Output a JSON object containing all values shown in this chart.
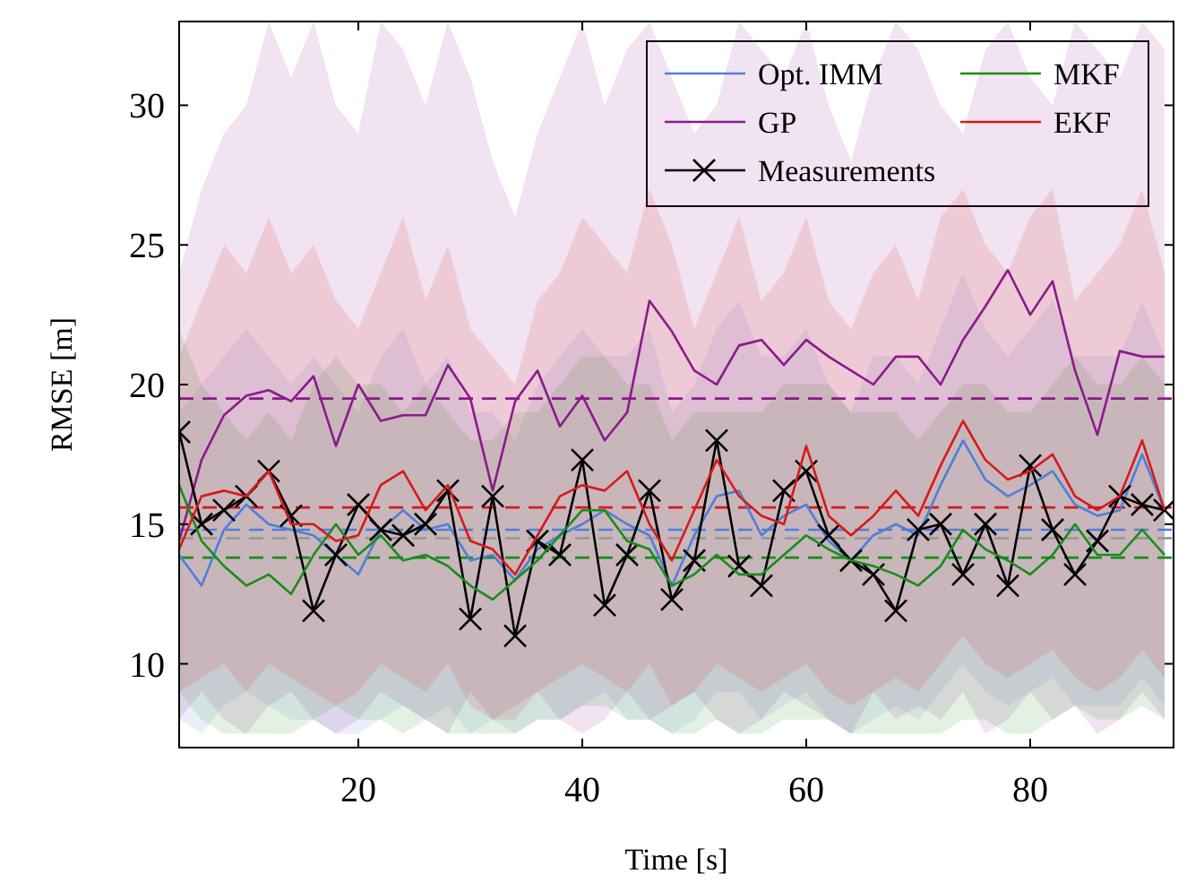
{
  "chart_data": {
    "type": "line",
    "xlabel": "Time [s]",
    "ylabel": "RMSE [m]",
    "xlim": [
      4,
      92.8
    ],
    "ylim": [
      7,
      33
    ],
    "xticks": [
      20,
      40,
      60,
      80
    ],
    "yticks": [
      10,
      15,
      20,
      25,
      30
    ],
    "grid": false,
    "legend": "top right",
    "x": [
      4,
      6,
      8,
      10,
      12,
      14,
      16,
      18,
      20,
      22,
      24,
      26,
      28,
      30,
      32,
      34,
      36,
      38,
      40,
      42,
      44,
      46,
      48,
      50,
      52,
      54,
      56,
      58,
      60,
      62,
      64,
      66,
      68,
      70,
      72,
      74,
      76,
      78,
      80,
      82,
      84,
      86,
      88,
      90,
      92
    ],
    "series": [
      {
        "name": "Opt. IMM",
        "color": "#4f7fd8",
        "values": [
          13.9,
          12.8,
          14.8,
          15.7,
          15.0,
          14.8,
          14.6,
          13.9,
          13.2,
          14.8,
          15.5,
          14.8,
          15.0,
          13.7,
          13.9,
          13.0,
          14.1,
          14.6,
          15.0,
          15.5,
          15.0,
          14.6,
          12.8,
          14.6,
          16.0,
          16.2,
          14.6,
          15.3,
          15.7,
          14.4,
          13.7,
          14.6,
          15.0,
          14.6,
          16.4,
          18.0,
          16.6,
          16.0,
          16.4,
          16.9,
          15.7,
          15.3,
          15.5,
          17.5,
          15.5
        ],
        "upper": [
          19,
          20,
          21,
          22,
          21,
          20,
          21,
          20,
          19,
          21,
          22,
          20,
          21,
          19,
          19,
          18,
          20,
          21,
          22,
          21,
          21,
          22,
          19,
          20,
          22,
          23,
          21,
          21,
          22,
          20,
          19,
          21,
          21,
          20,
          22,
          24,
          22,
          21,
          22,
          23,
          21,
          21,
          21,
          23,
          21
        ],
        "lower": [
          8,
          7.5,
          8.5,
          9,
          8.5,
          8,
          8,
          7.5,
          7.5,
          8,
          8.5,
          8,
          8.5,
          7.5,
          8,
          7.5,
          8,
          8,
          8.5,
          9,
          8,
          8,
          7.5,
          8,
          9,
          9,
          8,
          8.5,
          9,
          8,
          7.5,
          8,
          8.5,
          8,
          9,
          10,
          9,
          8.5,
          9,
          9.5,
          8.5,
          8.5,
          8.5,
          9.5,
          8.5
        ]
      },
      {
        "name": "GP",
        "color": "#8b1a8b",
        "values": [
          14.4,
          17.3,
          18.9,
          19.6,
          19.8,
          19.4,
          20.3,
          17.8,
          20.0,
          18.7,
          18.9,
          18.9,
          20.7,
          19.5,
          16.2,
          19.4,
          20.5,
          18.5,
          19.6,
          18.0,
          19.0,
          23.0,
          21.9,
          20.5,
          20.0,
          21.4,
          21.6,
          20.7,
          21.6,
          21.0,
          20.5,
          20.0,
          21.0,
          21.0,
          20.0,
          21.6,
          22.8,
          24.1,
          22.5,
          23.7,
          20.5,
          18.2,
          21.2,
          21.0,
          21.0
        ],
        "upper": [
          24,
          27,
          29,
          30,
          33,
          31,
          33,
          30,
          29,
          33,
          32,
          30,
          33,
          31,
          28,
          26,
          29,
          31,
          33,
          30,
          32,
          33,
          31,
          29,
          30,
          33,
          32,
          31,
          33,
          30,
          28,
          31,
          33,
          32,
          30,
          29,
          32,
          33,
          31,
          30,
          33,
          32,
          31,
          33,
          32
        ],
        "lower": [
          8,
          9,
          8,
          7.5,
          8.5,
          9,
          8,
          7.5,
          8,
          9,
          8.5,
          8,
          7.5,
          9,
          8,
          8.5,
          9,
          8,
          7.5,
          8,
          9,
          8,
          8.5,
          9,
          8,
          7.5,
          8,
          9,
          8.5,
          8,
          7.5,
          9,
          8,
          8.5,
          8,
          9,
          7.5,
          8,
          9,
          8,
          8.5,
          7.5,
          8,
          9,
          8
        ]
      },
      {
        "name": "Measurements",
        "color": "#000000",
        "marker": "cross",
        "values": [
          18.3,
          15.0,
          15.5,
          16.0,
          16.9,
          15.3,
          11.9,
          13.9,
          15.7,
          14.8,
          14.6,
          15.0,
          16.2,
          11.6,
          16.0,
          11.0,
          14.4,
          13.9,
          17.3,
          12.1,
          13.9,
          16.2,
          12.3,
          13.7,
          18.0,
          13.5,
          12.8,
          16.2,
          16.9,
          14.6,
          13.7,
          13.2,
          11.9,
          14.8,
          15.0,
          13.2,
          15.0,
          12.8,
          17.1,
          14.8,
          13.2,
          14.4,
          16.0,
          15.7,
          15.5
        ]
      },
      {
        "name": "MKF",
        "color": "#1a8c1a",
        "values": [
          16.4,
          14.4,
          13.5,
          12.8,
          13.2,
          12.5,
          13.9,
          15.0,
          13.9,
          14.6,
          13.7,
          13.9,
          13.5,
          12.8,
          12.3,
          13.0,
          13.7,
          14.6,
          15.5,
          15.5,
          14.4,
          14.1,
          12.8,
          13.2,
          13.9,
          13.2,
          13.2,
          13.9,
          14.6,
          14.1,
          13.7,
          13.5,
          13.2,
          12.8,
          13.5,
          14.8,
          14.1,
          13.7,
          13.2,
          13.9,
          15.0,
          13.9,
          13.9,
          14.8,
          13.9
        ],
        "upper": [
          22,
          20,
          19,
          18,
          19,
          18,
          20,
          21,
          20,
          20,
          19,
          20,
          19,
          18,
          18,
          19,
          19,
          20,
          21,
          21,
          20,
          20,
          18,
          19,
          19,
          19,
          19,
          20,
          20,
          20,
          19,
          19,
          19,
          18,
          19,
          20,
          20,
          19,
          19,
          20,
          21,
          20,
          20,
          21,
          20
        ],
        "lower": [
          9,
          8,
          7.5,
          7.5,
          7.5,
          7.5,
          8,
          8.5,
          8,
          8,
          7.5,
          8,
          7.5,
          7.5,
          7.5,
          7.5,
          8,
          8,
          8.5,
          8.5,
          8,
          8,
          7.5,
          7.5,
          8,
          7.5,
          7.5,
          8,
          8,
          8,
          7.5,
          7.5,
          7.5,
          7.5,
          7.5,
          8,
          8,
          7.5,
          7.5,
          8,
          8.5,
          8,
          8,
          8.5,
          8
        ]
      },
      {
        "name": "EKF",
        "color": "#d61a1a",
        "values": [
          14.1,
          16.0,
          16.2,
          16.0,
          16.9,
          15.0,
          15.0,
          14.4,
          14.6,
          16.4,
          16.9,
          15.5,
          16.4,
          14.4,
          14.1,
          13.2,
          14.6,
          16.0,
          16.4,
          16.2,
          16.9,
          15.0,
          13.7,
          15.5,
          17.3,
          16.0,
          15.3,
          15.0,
          17.8,
          15.3,
          14.6,
          15.3,
          16.2,
          15.3,
          17.1,
          18.7,
          17.3,
          16.6,
          16.9,
          17.5,
          16.0,
          15.5,
          16.0,
          18.0,
          15.5
        ],
        "upper": [
          21,
          23,
          25,
          24,
          26,
          24,
          25,
          23,
          22,
          24,
          26,
          23,
          25,
          22,
          21,
          20,
          23,
          24,
          26,
          25,
          24,
          27,
          25,
          22,
          24,
          26,
          23,
          24,
          26,
          23,
          22,
          24,
          25,
          23,
          26,
          27,
          25,
          24,
          26,
          27,
          23,
          24,
          25,
          27,
          24
        ],
        "lower": [
          9,
          9.5,
          10,
          9,
          10,
          9.5,
          9,
          8.5,
          9,
          10,
          9.5,
          9,
          10,
          8.5,
          8,
          8,
          9,
          9.5,
          10,
          9.5,
          9,
          10,
          8.5,
          9,
          10,
          9.5,
          9,
          9.5,
          10,
          9,
          8.5,
          9,
          9.5,
          9,
          10,
          11,
          10,
          9.5,
          10,
          10.5,
          9.5,
          9,
          9.5,
          10.5,
          9.5
        ]
      }
    ],
    "ref_lines": [
      {
        "axis": "y",
        "value": 19.5,
        "color": "#8b1a8b",
        "line_style": "dashed"
      },
      {
        "axis": "y",
        "value": 15.6,
        "color": "#d61a1a",
        "line_style": "dashed"
      },
      {
        "axis": "y",
        "value": 14.8,
        "color": "#4f7fd8",
        "line_style": "dashed"
      },
      {
        "axis": "y",
        "value": 14.5,
        "color": "#999999",
        "line_style": "dashed"
      },
      {
        "axis": "y",
        "value": 13.8,
        "color": "#1a8c1a",
        "line_style": "dashed"
      }
    ]
  }
}
